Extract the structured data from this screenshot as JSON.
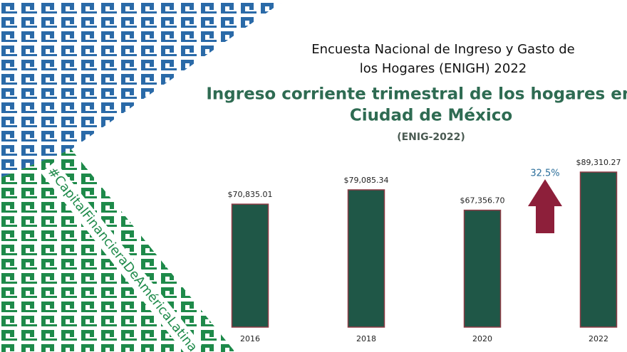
{
  "chart_data": {
    "type": "bar",
    "title": [
      "Encuesta Nacional de Ingreso y Gasto de",
      "los Hogares (ENIGH) 2022"
    ],
    "subtitle": [
      "Ingreso corriente trimestral de los hogares en la",
      "Ciudad de México"
    ],
    "source_note": "(ENIG-2022)",
    "hashtag": "#CapitalFinancieraDeAméricaLatina",
    "annotation": "32.5%",
    "categories": [
      "2016",
      "2018",
      "2020",
      "2022"
    ],
    "values": [
      70835.01,
      79085.34,
      67356.7,
      89310.27
    ],
    "value_labels": [
      "$70,835.01",
      "$79,085.34",
      "$67,356.70",
      "$89,310.27"
    ],
    "color": "#1f5747",
    "grid": false
  }
}
